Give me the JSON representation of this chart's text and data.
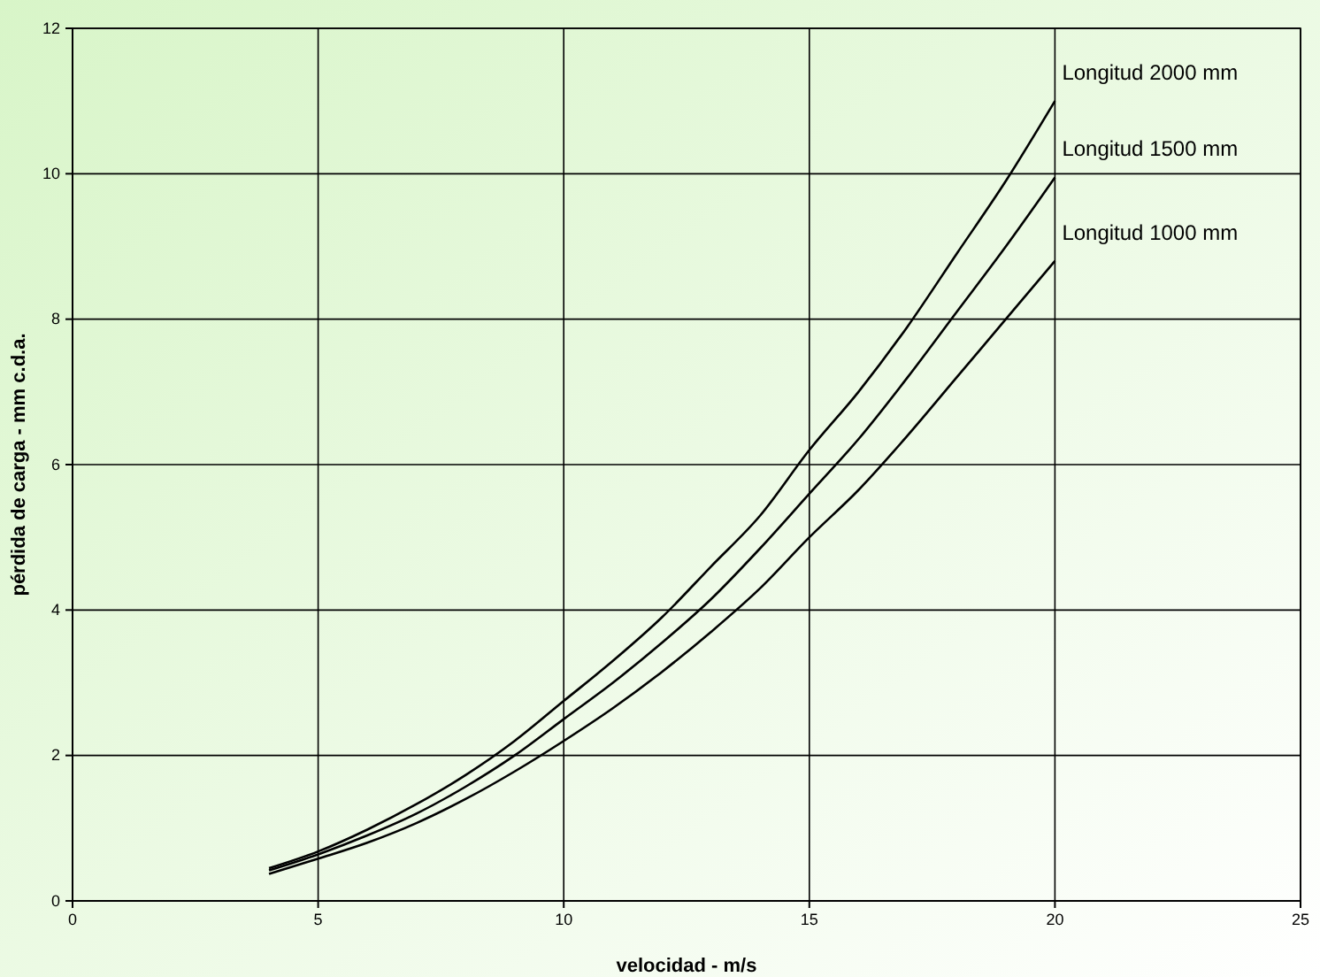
{
  "chart_data": {
    "type": "line",
    "xlabel": "velocidad - m/s",
    "ylabel": "pérdida de carga - mm c.d.a.",
    "x": [
      4,
      5,
      6,
      7,
      8,
      9,
      10,
      11,
      12,
      13,
      14,
      15,
      16,
      17,
      18,
      19,
      20
    ],
    "series": [
      {
        "name": "Longitud 2000 mm",
        "color": "#000000",
        "values": [
          0.45,
          0.68,
          0.98,
          1.33,
          1.73,
          2.2,
          2.75,
          3.3,
          3.9,
          4.6,
          5.3,
          6.2,
          7.0,
          7.9,
          8.9,
          9.9,
          11.0
        ]
      },
      {
        "name": "Longitud 1500 mm",
        "color": "#000000",
        "values": [
          0.42,
          0.64,
          0.9,
          1.2,
          1.57,
          2.0,
          2.5,
          3.0,
          3.55,
          4.15,
          4.85,
          5.6,
          6.35,
          7.2,
          8.1,
          9.0,
          9.95
        ]
      },
      {
        "name": "Longitud 1000 mm",
        "color": "#000000",
        "values": [
          0.37,
          0.58,
          0.8,
          1.07,
          1.4,
          1.78,
          2.2,
          2.65,
          3.15,
          3.7,
          4.3,
          5.0,
          5.65,
          6.4,
          7.2,
          8.0,
          8.8
        ]
      }
    ],
    "xlim": [
      0,
      25
    ],
    "xticks": [
      0,
      5,
      10,
      15,
      20,
      25
    ],
    "ylim": [
      0,
      12
    ],
    "yticks": [
      0,
      2,
      4,
      6,
      8,
      10,
      12
    ],
    "grid": true,
    "legend": false,
    "marker": "none",
    "line_style": "solid"
  }
}
